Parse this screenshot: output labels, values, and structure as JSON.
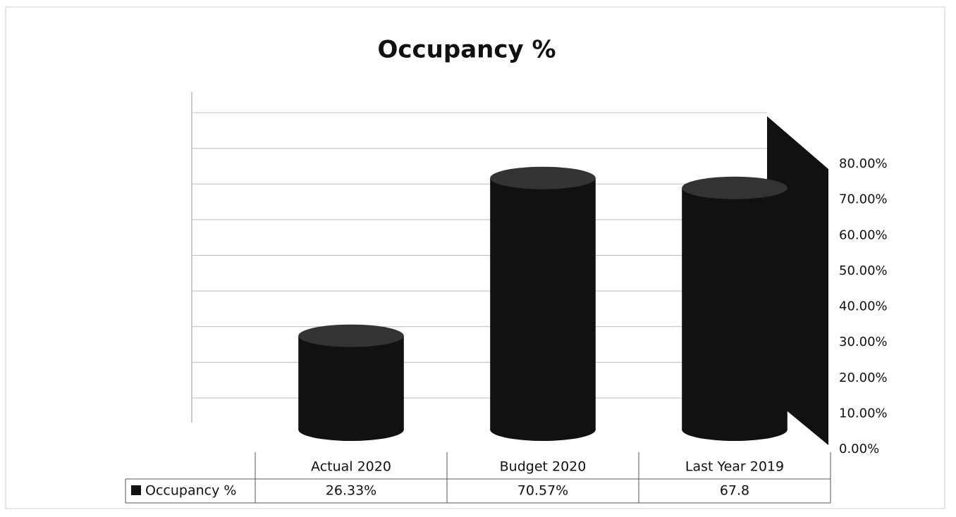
{
  "chart_data": {
    "type": "bar",
    "title": "Occupancy %",
    "categories": [
      "Actual 2020",
      "Budget 2020",
      "Last Year 2019"
    ],
    "series": [
      {
        "name": "Occupancy %",
        "color": "#111111",
        "values": [
          26.33,
          70.57,
          67.8
        ],
        "value_labels": [
          "26.33%",
          "70.57%",
          "67.8"
        ]
      }
    ],
    "ylim": [
      0,
      80
    ],
    "yticks": [
      {
        "value": 0,
        "label": "0.00%"
      },
      {
        "value": 10,
        "label": "10.00%"
      },
      {
        "value": 20,
        "label": "20.00%"
      },
      {
        "value": 30,
        "label": "30.00%"
      },
      {
        "value": 40,
        "label": "40.00%"
      },
      {
        "value": 50,
        "label": "50.00%"
      },
      {
        "value": 60,
        "label": "60.00%"
      },
      {
        "value": 70,
        "label": "70.00%"
      },
      {
        "value": 80,
        "label": "80.00%"
      }
    ],
    "grid": true
  }
}
